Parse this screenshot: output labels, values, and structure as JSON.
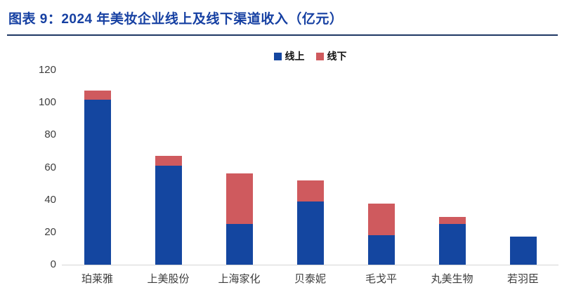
{
  "header": {
    "title": "图表 9：2024 年美妆企业线上及线下渠道收入（亿元）"
  },
  "colors": {
    "title_text": "#1640a2",
    "title_underline": "#1f3864",
    "online_bar": "#1446a0",
    "offline_bar": "#cf5a5e",
    "axis_line": "#d6d6d6",
    "tick_text": "#3d3d3d"
  },
  "chart_data": {
    "type": "bar",
    "stacked": true,
    "title": "2024 年美妆企业线上及线下渠道收入（亿元）",
    "xlabel": "",
    "ylabel": "",
    "ylim": [
      0,
      120
    ],
    "yticks": [
      0,
      20,
      40,
      60,
      80,
      100,
      120
    ],
    "grid": false,
    "legend_position": "top-center",
    "categories": [
      "珀莱雅",
      "上美股份",
      "上海家化",
      "贝泰妮",
      "毛戈平",
      "丸美生物",
      "若羽臣"
    ],
    "series": [
      {
        "name": "线上",
        "color": "#1446a0",
        "values": [
          102,
          61,
          25,
          39,
          18,
          25,
          17.5
        ]
      },
      {
        "name": "线下",
        "color": "#cf5a5e",
        "values": [
          5.5,
          6,
          31.5,
          13,
          19.5,
          4.5,
          0
        ]
      }
    ],
    "totals": [
      107.5,
      67,
      56.5,
      52,
      37.5,
      29.5,
      17.5
    ]
  }
}
